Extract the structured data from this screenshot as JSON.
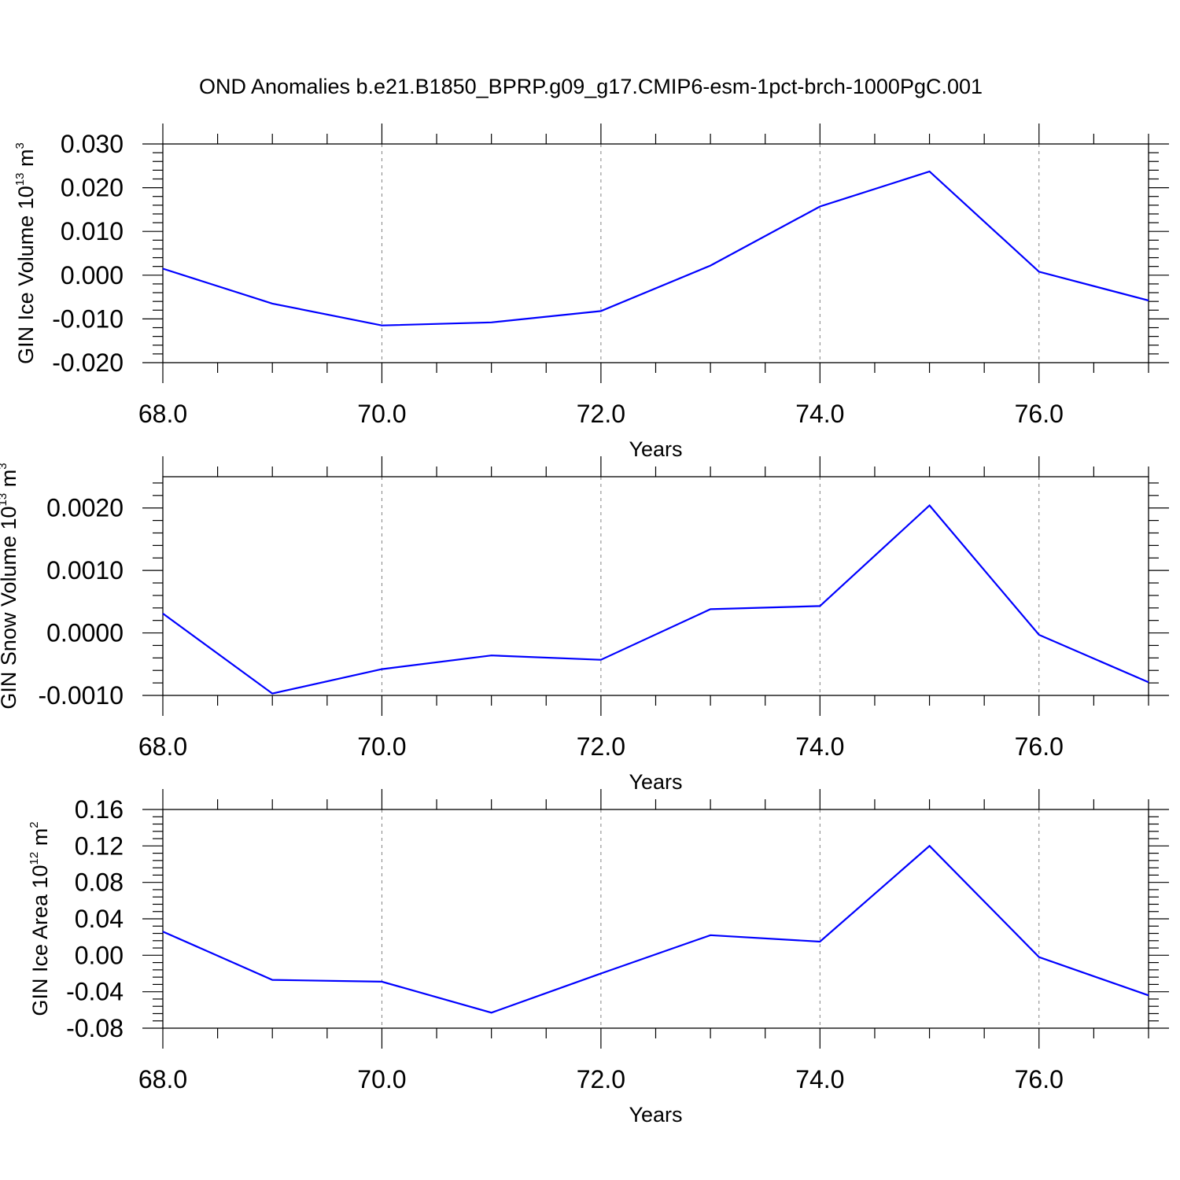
{
  "title": "OND Anomalies b.e21.B1850_BPRP.g09_g17.CMIP6-esm-1pct-brch-1000PgC.001",
  "colors": {
    "line": "#0000ff",
    "axis": "#000000",
    "grid": "#808080"
  },
  "chart_data": [
    {
      "type": "line",
      "ylabel": {
        "text": "GIN Ice Volume 10",
        "exp": "13",
        "unit": " m",
        "unit_exp": "3"
      },
      "xlabel": "Years",
      "xlim": [
        68,
        77
      ],
      "ylim": [
        -0.02,
        0.03
      ],
      "xticks": [
        68,
        70,
        72,
        74,
        76
      ],
      "xtick_labels": [
        "68.0",
        "70.0",
        "72.0",
        "74.0",
        "76.0"
      ],
      "yticks": [
        -0.02,
        -0.01,
        0.0,
        0.01,
        0.02,
        0.03
      ],
      "ytick_labels": [
        "-0.020",
        "-0.010",
        "0.000",
        "0.010",
        "0.020",
        "0.030"
      ],
      "grid": "vertical dashed at major x ticks",
      "series": [
        {
          "x": [
            68,
            69,
            70,
            71,
            72,
            73,
            74,
            75,
            76,
            77
          ],
          "y": [
            0.0015,
            -0.0065,
            -0.0115,
            -0.0108,
            -0.0082,
            0.0022,
            0.0157,
            0.0237,
            0.0008,
            -0.0058
          ]
        }
      ]
    },
    {
      "type": "line",
      "ylabel": {
        "text": "GIN Snow Volume 10",
        "exp": "13",
        "unit": " m",
        "unit_exp": "3"
      },
      "xlabel": "Years",
      "xlim": [
        68,
        77
      ],
      "ylim": [
        -0.001,
        0.0025
      ],
      "xticks": [
        68,
        70,
        72,
        74,
        76
      ],
      "xtick_labels": [
        "68.0",
        "70.0",
        "72.0",
        "74.0",
        "76.0"
      ],
      "yticks": [
        -0.001,
        0.0,
        0.001,
        0.002
      ],
      "ytick_labels": [
        "-0.0010",
        "0.0000",
        "0.0010",
        "0.0020"
      ],
      "grid": "vertical dashed at major x ticks",
      "series": [
        {
          "x": [
            68,
            69,
            70,
            71,
            72,
            73,
            74,
            75,
            76,
            77
          ],
          "y": [
            0.00031,
            -0.00097,
            -0.00058,
            -0.00036,
            -0.00043,
            0.00038,
            0.00043,
            0.00204,
            -3e-05,
            -0.00079
          ]
        }
      ]
    },
    {
      "type": "line",
      "ylabel": {
        "text": "GIN Ice Area 10",
        "exp": "12",
        "unit": " m",
        "unit_exp": "2"
      },
      "xlabel": "Years",
      "xlim": [
        68,
        77
      ],
      "ylim": [
        -0.08,
        0.16
      ],
      "xticks": [
        68,
        70,
        72,
        74,
        76
      ],
      "xtick_labels": [
        "68.0",
        "70.0",
        "72.0",
        "74.0",
        "76.0"
      ],
      "yticks": [
        -0.08,
        -0.04,
        0.0,
        0.04,
        0.08,
        0.12,
        0.16
      ],
      "ytick_labels": [
        "-0.08",
        "-0.04",
        "0.00",
        "0.04",
        "0.08",
        "0.12",
        "0.16"
      ],
      "grid": "vertical dashed at major x ticks",
      "series": [
        {
          "x": [
            68,
            69,
            70,
            71,
            72,
            73,
            74,
            75,
            76,
            77
          ],
          "y": [
            0.026,
            -0.027,
            -0.029,
            -0.063,
            -0.02,
            0.022,
            0.015,
            0.12,
            -0.002,
            -0.044
          ]
        }
      ]
    }
  ]
}
